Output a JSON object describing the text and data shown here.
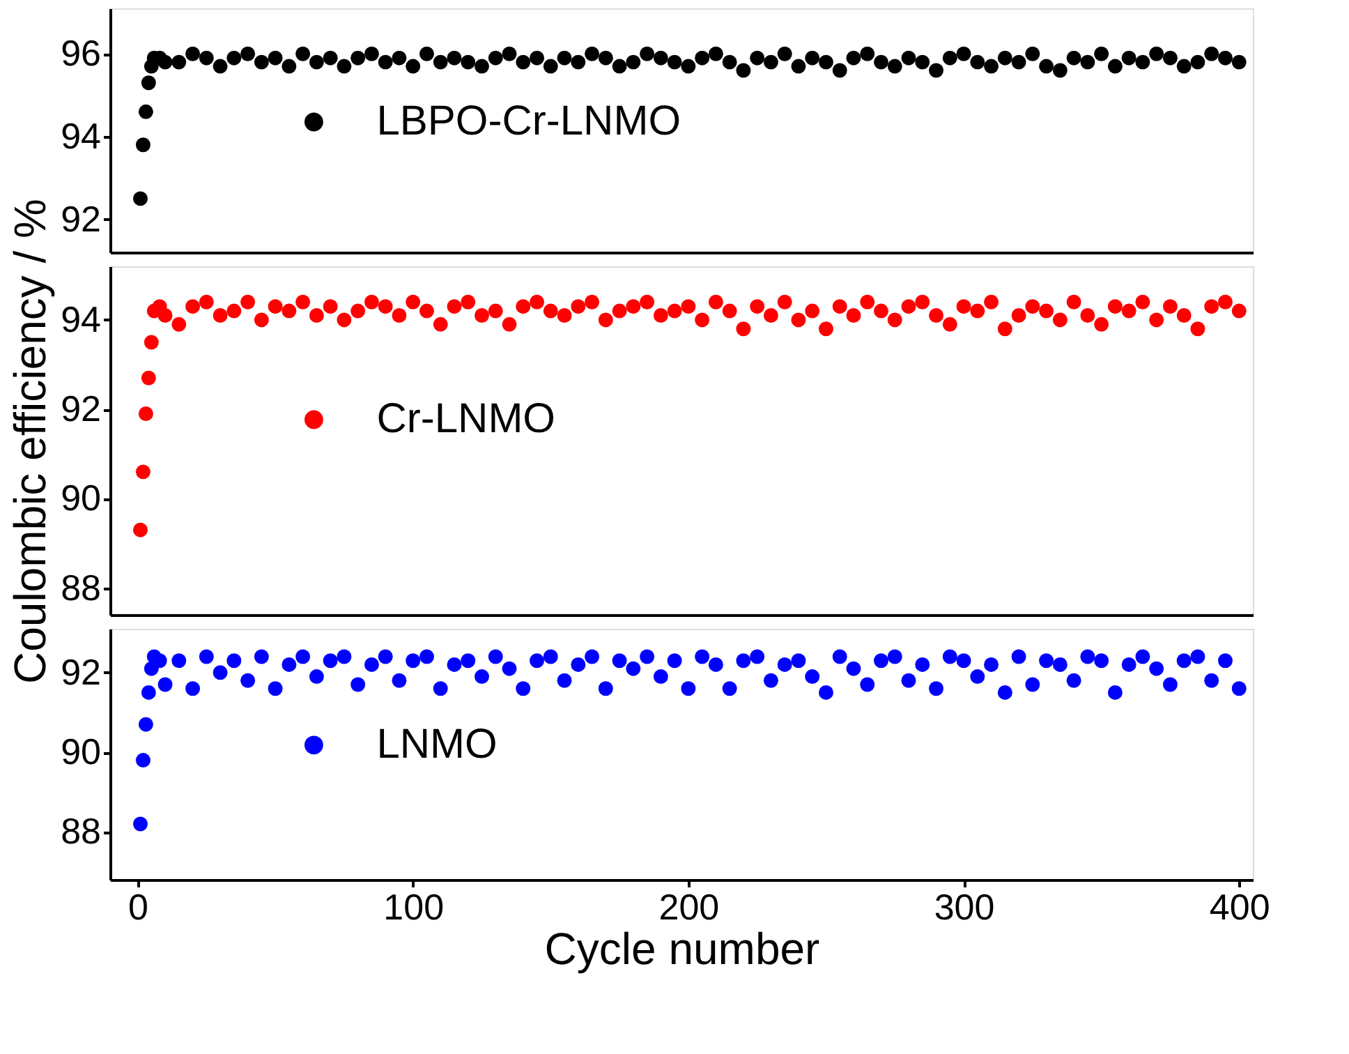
{
  "chart_data": [
    {
      "type": "scatter",
      "xlim": [
        -10,
        405
      ],
      "ylim": [
        91.2,
        97.1
      ],
      "yticks": [
        92,
        94,
        96
      ],
      "tick_labels": "y",
      "grid": false,
      "legend": "left",
      "marker": "circle",
      "series": [
        {
          "name": "LBPO-Cr-LNMO",
          "color": "#000000",
          "x": [
            1,
            2,
            3,
            4,
            5,
            6,
            8,
            10,
            15,
            20,
            25,
            30,
            35,
            40,
            45,
            50,
            55,
            60,
            65,
            70,
            75,
            80,
            85,
            90,
            95,
            100,
            105,
            110,
            115,
            120,
            125,
            130,
            135,
            140,
            145,
            150,
            155,
            160,
            165,
            170,
            175,
            180,
            185,
            190,
            195,
            200,
            205,
            210,
            215,
            220,
            225,
            230,
            235,
            240,
            245,
            250,
            255,
            260,
            265,
            270,
            275,
            280,
            285,
            290,
            295,
            300,
            305,
            310,
            315,
            320,
            325,
            330,
            335,
            340,
            345,
            350,
            355,
            360,
            365,
            370,
            375,
            380,
            385,
            390,
            395,
            400
          ],
          "values": [
            92.5,
            93.8,
            94.6,
            95.3,
            95.7,
            95.9,
            95.9,
            95.8,
            95.8,
            96.0,
            95.9,
            95.7,
            95.9,
            96.0,
            95.8,
            95.9,
            95.7,
            96.0,
            95.8,
            95.9,
            95.7,
            95.9,
            96.0,
            95.8,
            95.9,
            95.7,
            96.0,
            95.8,
            95.9,
            95.8,
            95.7,
            95.9,
            96.0,
            95.8,
            95.9,
            95.7,
            95.9,
            95.8,
            96.0,
            95.9,
            95.7,
            95.8,
            96.0,
            95.9,
            95.8,
            95.7,
            95.9,
            96.0,
            95.8,
            95.6,
            95.9,
            95.8,
            96.0,
            95.7,
            95.9,
            95.8,
            95.6,
            95.9,
            96.0,
            95.8,
            95.7,
            95.9,
            95.8,
            95.6,
            95.9,
            96.0,
            95.8,
            95.7,
            95.9,
            95.8,
            96.0,
            95.7,
            95.6,
            95.9,
            95.8,
            96.0,
            95.7,
            95.9,
            95.8,
            96.0,
            95.9,
            95.7,
            95.8,
            96.0,
            95.9,
            95.8
          ]
        }
      ]
    },
    {
      "type": "scatter",
      "xlim": [
        -10,
        405
      ],
      "ylim": [
        87.4,
        95.2
      ],
      "yticks": [
        88,
        90,
        92,
        94
      ],
      "tick_labels": "y",
      "grid": false,
      "legend": "left",
      "marker": "circle",
      "ylabel": "Coulombic efficiency / %",
      "series": [
        {
          "name": "Cr-LNMO",
          "color": "#ff0000",
          "x": [
            1,
            2,
            3,
            4,
            5,
            6,
            8,
            10,
            15,
            20,
            25,
            30,
            35,
            40,
            45,
            50,
            55,
            60,
            65,
            70,
            75,
            80,
            85,
            90,
            95,
            100,
            105,
            110,
            115,
            120,
            125,
            130,
            135,
            140,
            145,
            150,
            155,
            160,
            165,
            170,
            175,
            180,
            185,
            190,
            195,
            200,
            205,
            210,
            215,
            220,
            225,
            230,
            235,
            240,
            245,
            250,
            255,
            260,
            265,
            270,
            275,
            280,
            285,
            290,
            295,
            300,
            305,
            310,
            315,
            320,
            325,
            330,
            335,
            340,
            345,
            350,
            355,
            360,
            365,
            370,
            375,
            380,
            385,
            390,
            395,
            400
          ],
          "values": [
            89.3,
            90.6,
            91.9,
            92.7,
            93.5,
            94.2,
            94.3,
            94.1,
            93.9,
            94.3,
            94.4,
            94.1,
            94.2,
            94.4,
            94.0,
            94.3,
            94.2,
            94.4,
            94.1,
            94.3,
            94.0,
            94.2,
            94.4,
            94.3,
            94.1,
            94.4,
            94.2,
            93.9,
            94.3,
            94.4,
            94.1,
            94.2,
            93.9,
            94.3,
            94.4,
            94.2,
            94.1,
            94.3,
            94.4,
            94.0,
            94.2,
            94.3,
            94.4,
            94.1,
            94.2,
            94.3,
            94.0,
            94.4,
            94.2,
            93.8,
            94.3,
            94.1,
            94.4,
            94.0,
            94.2,
            93.8,
            94.3,
            94.1,
            94.4,
            94.2,
            94.0,
            94.3,
            94.4,
            94.1,
            93.9,
            94.3,
            94.2,
            94.4,
            93.8,
            94.1,
            94.3,
            94.2,
            94.0,
            94.4,
            94.1,
            93.9,
            94.3,
            94.2,
            94.4,
            94.0,
            94.3,
            94.1,
            93.8,
            94.3,
            94.4,
            94.2
          ]
        }
      ]
    },
    {
      "type": "scatter",
      "xlim": [
        -10,
        405
      ],
      "ylim": [
        86.8,
        93.1
      ],
      "yticks": [
        88,
        90,
        92
      ],
      "xticks": [
        0,
        100,
        200,
        300,
        400
      ],
      "xlabel": "Cycle number",
      "grid": false,
      "legend": "left",
      "marker": "circle",
      "series": [
        {
          "name": "LNMO",
          "color": "#0000ff",
          "x": [
            1,
            2,
            3,
            4,
            5,
            6,
            8,
            10,
            15,
            20,
            25,
            30,
            35,
            40,
            45,
            50,
            55,
            60,
            65,
            70,
            75,
            80,
            85,
            90,
            95,
            100,
            105,
            110,
            115,
            120,
            125,
            130,
            135,
            140,
            145,
            150,
            155,
            160,
            165,
            170,
            175,
            180,
            185,
            190,
            195,
            200,
            205,
            210,
            215,
            220,
            225,
            230,
            235,
            240,
            245,
            250,
            255,
            260,
            265,
            270,
            275,
            280,
            285,
            290,
            295,
            300,
            305,
            310,
            315,
            320,
            325,
            330,
            335,
            340,
            345,
            350,
            355,
            360,
            365,
            370,
            375,
            380,
            385,
            390,
            395,
            400
          ],
          "values": [
            88.2,
            89.8,
            90.7,
            91.5,
            92.1,
            92.4,
            92.3,
            91.7,
            92.3,
            91.6,
            92.4,
            92.0,
            92.3,
            91.8,
            92.4,
            91.6,
            92.2,
            92.4,
            91.9,
            92.3,
            92.4,
            91.7,
            92.2,
            92.4,
            91.8,
            92.3,
            92.4,
            91.6,
            92.2,
            92.3,
            91.9,
            92.4,
            92.1,
            91.6,
            92.3,
            92.4,
            91.8,
            92.2,
            92.4,
            91.6,
            92.3,
            92.1,
            92.4,
            91.9,
            92.3,
            91.6,
            92.4,
            92.2,
            91.6,
            92.3,
            92.4,
            91.8,
            92.2,
            92.3,
            91.9,
            91.5,
            92.4,
            92.1,
            91.7,
            92.3,
            92.4,
            91.8,
            92.2,
            91.6,
            92.4,
            92.3,
            91.9,
            92.2,
            91.5,
            92.4,
            91.7,
            92.3,
            92.2,
            91.8,
            92.4,
            92.3,
            91.5,
            92.2,
            92.4,
            92.1,
            91.7,
            92.3,
            92.4,
            91.8,
            92.3,
            91.6
          ]
        }
      ]
    }
  ]
}
